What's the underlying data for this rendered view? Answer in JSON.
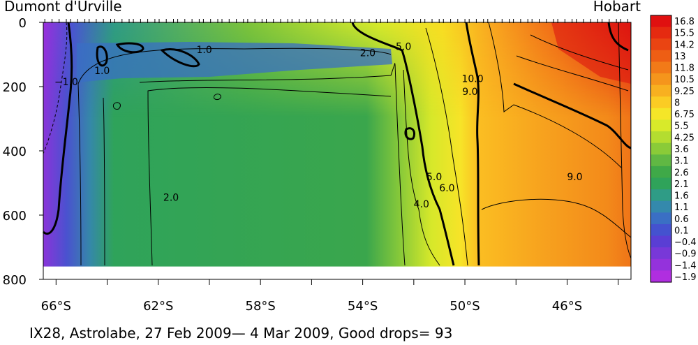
{
  "chart_data": {
    "type": "heatmap",
    "title": "IX28, Astrolabe, 27 Feb 2009— 4 Mar 2009, Good drops= 93",
    "left_station": "Dumont d'Urville",
    "right_station": "Hobart",
    "x_ticks": [
      "66°S",
      "62°S",
      "58°S",
      "54°S",
      "50°S",
      "46°S"
    ],
    "x_tick_values": [
      66,
      62,
      58,
      54,
      50,
      46
    ],
    "xlim": [
      66.5,
      43.5
    ],
    "y_ticks": [
      "0",
      "200",
      "400",
      "600",
      "800"
    ],
    "y_tick_values": [
      0,
      200,
      400,
      600,
      800
    ],
    "ylim": [
      0,
      800
    ],
    "data_max_depth": 760,
    "colorbar_levels": [
      "16.8",
      "15.5",
      "14.2",
      "13",
      "11.8",
      "10.5",
      "9.25",
      "8",
      "6.75",
      "5.5",
      "4.25",
      "3.6",
      "3.1",
      "2.6",
      "2.1",
      "1.6",
      "1.1",
      "0.6",
      "0.1",
      "−0.4",
      "−0.9",
      "−1.4",
      "−1.9"
    ],
    "colorbar_colors": [
      "#e01010",
      "#e52a10",
      "#ea4412",
      "#ee5e14",
      "#f27a18",
      "#f5951c",
      "#f8b020",
      "#fbcc24",
      "#f5e628",
      "#d8ea2a",
      "#b4dd30",
      "#8acb38",
      "#60b843",
      "#3fa948",
      "#2fa35a",
      "#2f9c86",
      "#3489ac",
      "#3a6fc4",
      "#4452cf",
      "#5a3ed4",
      "#7838d8",
      "#9432dc",
      "#b02ee0"
    ],
    "contour_labels": [
      {
        "text": "−1.0",
        "lat": 65.6,
        "depth": 185
      },
      {
        "text": "1.0",
        "lat": 64.2,
        "depth": 150
      },
      {
        "text": "1.0",
        "lat": 60.2,
        "depth": 85
      },
      {
        "text": "2.0",
        "lat": 53.8,
        "depth": 95
      },
      {
        "text": "5.0",
        "lat": 52.4,
        "depth": 75
      },
      {
        "text": "10.0",
        "lat": 49.7,
        "depth": 175
      },
      {
        "text": "9.0",
        "lat": 49.8,
        "depth": 215
      },
      {
        "text": "2.0",
        "lat": 61.5,
        "depth": 545
      },
      {
        "text": "5.0",
        "lat": 51.2,
        "depth": 480
      },
      {
        "text": "6.0",
        "lat": 50.7,
        "depth": 515
      },
      {
        "text": "4.0",
        "lat": 51.7,
        "depth": 565
      },
      {
        "text": "9.0",
        "lat": 45.7,
        "depth": 480
      }
    ],
    "colors": {
      "background": "#ffffff",
      "contour": "#000000"
    }
  }
}
